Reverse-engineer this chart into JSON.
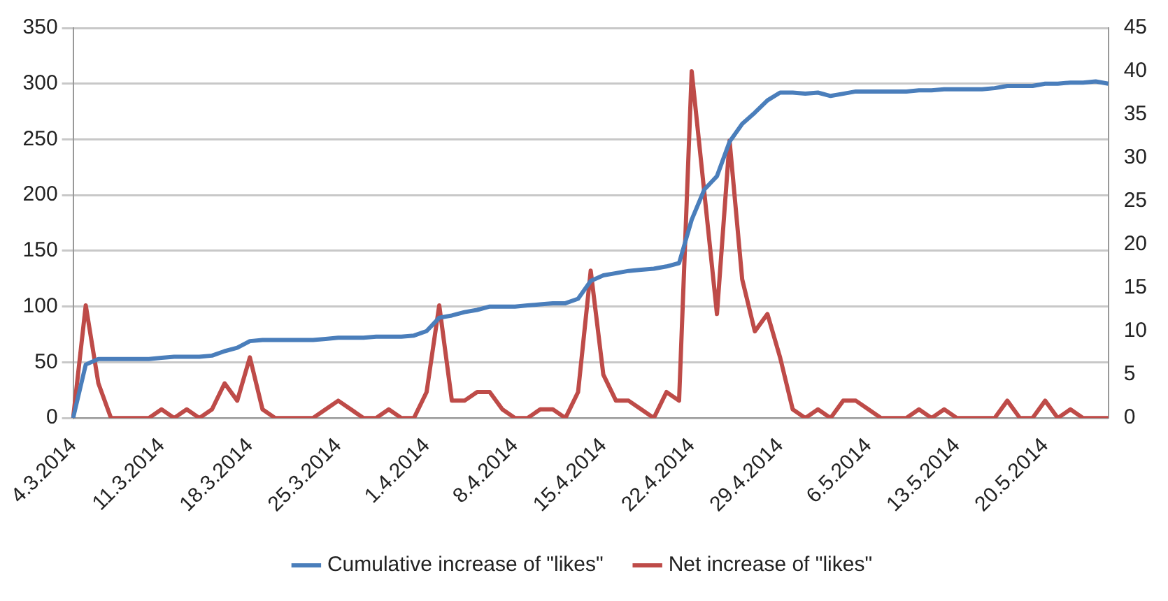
{
  "chart_data": {
    "type": "line",
    "categories": [
      "4.3.2014",
      null,
      null,
      null,
      null,
      null,
      null,
      "11.3.2014",
      null,
      null,
      null,
      null,
      null,
      null,
      "18.3.2014",
      null,
      null,
      null,
      null,
      null,
      null,
      "25.3.2014",
      null,
      null,
      null,
      null,
      null,
      null,
      "1.4.2014",
      null,
      null,
      null,
      null,
      null,
      null,
      "8.4.2014",
      null,
      null,
      null,
      null,
      null,
      null,
      "15.4.2014",
      null,
      null,
      null,
      null,
      null,
      null,
      "22.4.2014",
      null,
      null,
      null,
      null,
      null,
      null,
      "29.4.2014",
      null,
      null,
      null,
      null,
      null,
      null,
      "6.5.2014",
      null,
      null,
      null,
      null,
      null,
      null,
      "13.5.2014",
      null,
      null,
      null,
      null,
      null,
      null,
      "20.5.2014",
      null,
      null,
      null,
      null,
      null
    ],
    "series": [
      {
        "name": "Cumulative increase of \"likes\"",
        "color": "#4a7ebb",
        "axis": "y",
        "values": [
          0,
          48,
          53,
          53,
          53,
          53,
          53,
          54,
          55,
          55,
          55,
          56,
          60,
          63,
          69,
          70,
          70,
          70,
          70,
          70,
          71,
          72,
          72,
          72,
          73,
          73,
          73,
          74,
          78,
          90,
          92,
          95,
          97,
          100,
          100,
          100,
          101,
          102,
          103,
          103,
          107,
          123,
          128,
          130,
          132,
          133,
          134,
          136,
          139,
          178,
          205,
          217,
          248,
          264,
          274,
          285,
          292,
          292,
          291,
          292,
          289,
          291,
          293,
          293,
          293,
          293,
          293,
          294,
          294,
          295,
          295,
          295,
          295,
          296,
          298,
          298,
          298,
          300,
          300,
          301,
          301,
          302,
          300
        ]
      },
      {
        "name": "Net increase of \"likes\"",
        "color": "#be4b48",
        "axis": "y2",
        "values": [
          0,
          13,
          4,
          0,
          0,
          0,
          0,
          1,
          0,
          1,
          0,
          1,
          4,
          2,
          7,
          1,
          0,
          0,
          0,
          0,
          1,
          2,
          1,
          0,
          0,
          1,
          0,
          0,
          3,
          13,
          2,
          2,
          3,
          3,
          1,
          0,
          0,
          1,
          1,
          0,
          3,
          17,
          5,
          2,
          2,
          1,
          0,
          3,
          2,
          40,
          26,
          12,
          32,
          16,
          10,
          12,
          7,
          1,
          0,
          1,
          0,
          2,
          2,
          1,
          0,
          0,
          0,
          1,
          0,
          1,
          0,
          0,
          0,
          0,
          2,
          0,
          0,
          2,
          0,
          1,
          0,
          0,
          0
        ]
      }
    ],
    "ylim": [
      0,
      350
    ],
    "yticks": [
      0,
      50,
      100,
      150,
      200,
      250,
      300,
      350
    ],
    "y2lim": [
      0,
      45
    ],
    "y2ticks": [
      0,
      5,
      10,
      15,
      20,
      25,
      30,
      35,
      40,
      45
    ],
    "grid": "y",
    "legend": "bottom",
    "marker": "none",
    "line_style": "solid"
  }
}
